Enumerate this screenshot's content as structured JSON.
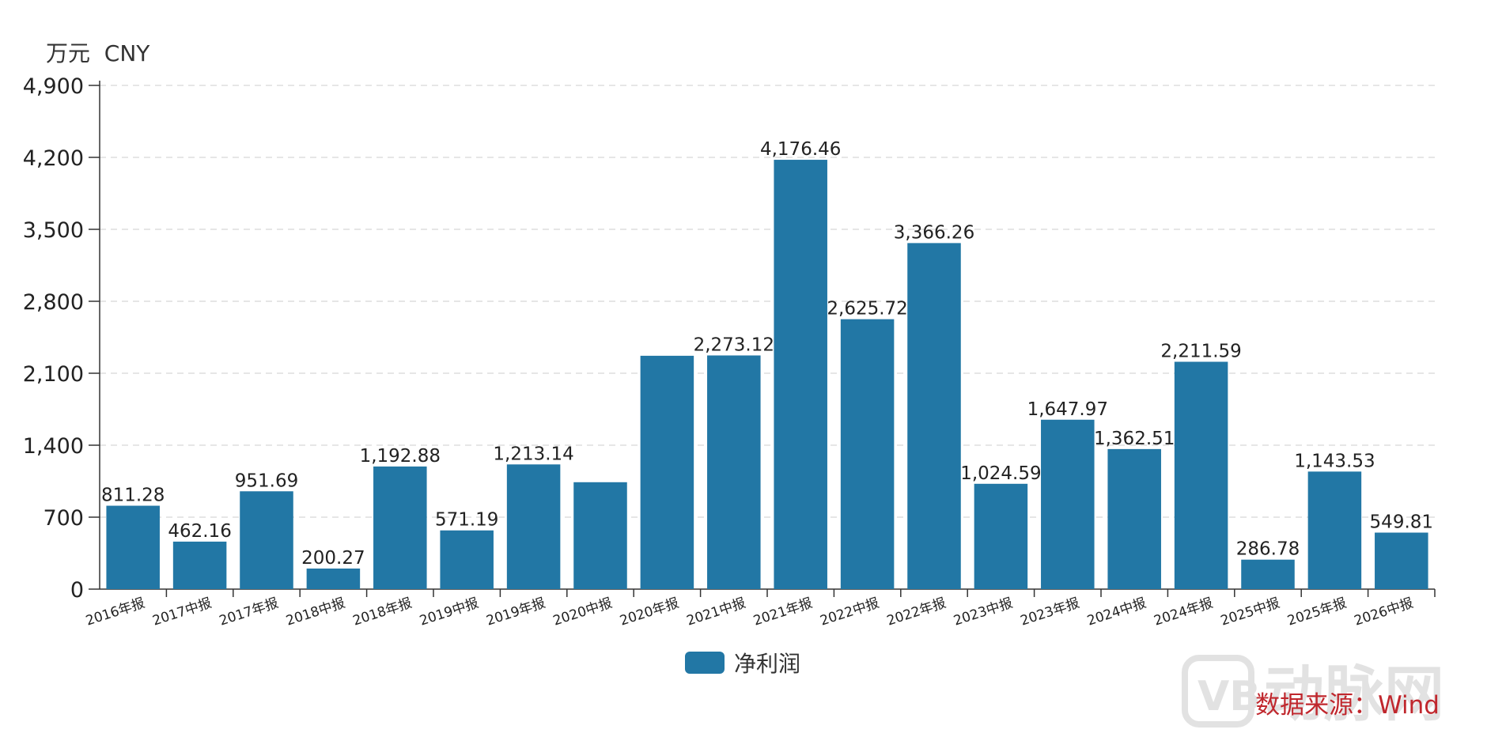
{
  "chart_data": {
    "type": "bar",
    "y_unit_label": "万元  CNY",
    "categories": [
      "2016年报",
      "2017中报",
      "2017年报",
      "2018中报",
      "2018年报",
      "2019中报",
      "2019年报",
      "2020中报",
      "2020年报",
      "2021中报",
      "2021年报",
      "2022中报",
      "2022年报",
      "2023中报",
      "2023年报",
      "2024中报",
      "2024年报",
      "2025中报",
      "2025年报",
      "2026中报"
    ],
    "series": [
      {
        "name": "净利润",
        "color": "#2277a5",
        "values": [
          811.28,
          462.16,
          951.69,
          200.27,
          1192.88,
          571.19,
          1213.14,
          1040,
          2270,
          2273.12,
          4176.46,
          2625.72,
          3366.26,
          1024.59,
          1647.97,
          1362.51,
          2211.59,
          286.78,
          1143.53,
          549.81
        ]
      }
    ],
    "data_labels": [
      "811.28",
      "462.16",
      "951.69",
      "200.27",
      "1,192.88",
      "571.19",
      "1,213.14",
      "",
      "",
      "2,273.12",
      "4,176.46",
      "2,625.72",
      "3,366.26",
      "1,024.59",
      "1,647.97",
      "1,362.51",
      "2,211.59",
      "286.78",
      "1,143.53",
      "549.81"
    ],
    "y_ticks": [
      0,
      700,
      1400,
      2100,
      2800,
      3500,
      4200,
      4900
    ],
    "y_tick_labels": [
      "0",
      "700",
      "1,400",
      "2,100",
      "2,800",
      "3,500",
      "4,200",
      "4,900"
    ],
    "ylim": [
      0,
      4900
    ],
    "grid": true,
    "legend_position": "bottom-center"
  },
  "legend": {
    "label": "净利润"
  },
  "source_note": "数据来源：Wind",
  "watermark_text": "动脉网",
  "colors": {
    "bar": "#2277a5",
    "source": "#c0272d",
    "grid": "#dddddd"
  }
}
